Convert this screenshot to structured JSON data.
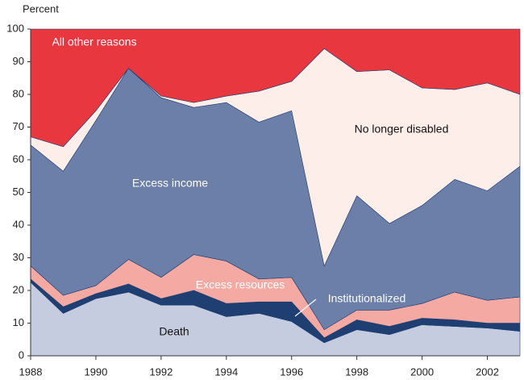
{
  "chart_data": {
    "type": "stacked-area",
    "y_label": "Percent",
    "x": [
      1988,
      1989,
      1990,
      1991,
      1992,
      1993,
      1994,
      1995,
      1996,
      1997,
      1998,
      1999,
      2000,
      2001,
      2002,
      2003
    ],
    "xlim": [
      1988,
      2003
    ],
    "xticks": [
      1988,
      1990,
      1992,
      1994,
      1996,
      1998,
      2000,
      2002
    ],
    "ylim": [
      0,
      100
    ],
    "yticks": [
      0,
      10,
      20,
      30,
      40,
      50,
      60,
      70,
      80,
      90,
      100
    ],
    "series": [
      {
        "name": "Death",
        "color": "#c6cce0",
        "values": [
          22.5,
          13,
          17.5,
          19.5,
          15.5,
          15.5,
          12,
          13,
          10.5,
          4,
          8,
          6.5,
          9.5,
          9,
          8.5,
          7.5
        ]
      },
      {
        "name": "Institutionalized",
        "color": "#1f3f73",
        "values": [
          1,
          2,
          1.5,
          2.5,
          2,
          4.5,
          4,
          3.5,
          6,
          1.5,
          3,
          2.5,
          2,
          2,
          1.5,
          2.5
        ]
      },
      {
        "name": "Excess resources",
        "color": "#f4aaa3",
        "values": [
          4,
          3.5,
          2.5,
          7.5,
          6.5,
          11,
          13,
          7,
          7.5,
          2.5,
          3,
          5,
          4.5,
          8.5,
          7,
          8
        ]
      },
      {
        "name": "Excess income",
        "color": "#6b7fa8",
        "values": [
          37,
          38,
          50.5,
          58.5,
          55,
          45,
          48.5,
          48,
          51,
          19.5,
          35,
          26.5,
          30,
          34.5,
          33.5,
          40
        ]
      },
      {
        "name": "No longer disabled",
        "color": "#fdeeea",
        "values": [
          2.5,
          7.5,
          3,
          0,
          0.5,
          1.5,
          2,
          9.5,
          9,
          66.5,
          38,
          47,
          36,
          27.5,
          33,
          22
        ]
      },
      {
        "name": "All other reasons",
        "color": "#e8373f",
        "values": [
          33,
          36,
          25,
          12,
          20.5,
          22.5,
          20.5,
          19,
          16,
          6,
          13,
          12.5,
          18,
          18.5,
          16.5,
          20
        ]
      }
    ]
  }
}
